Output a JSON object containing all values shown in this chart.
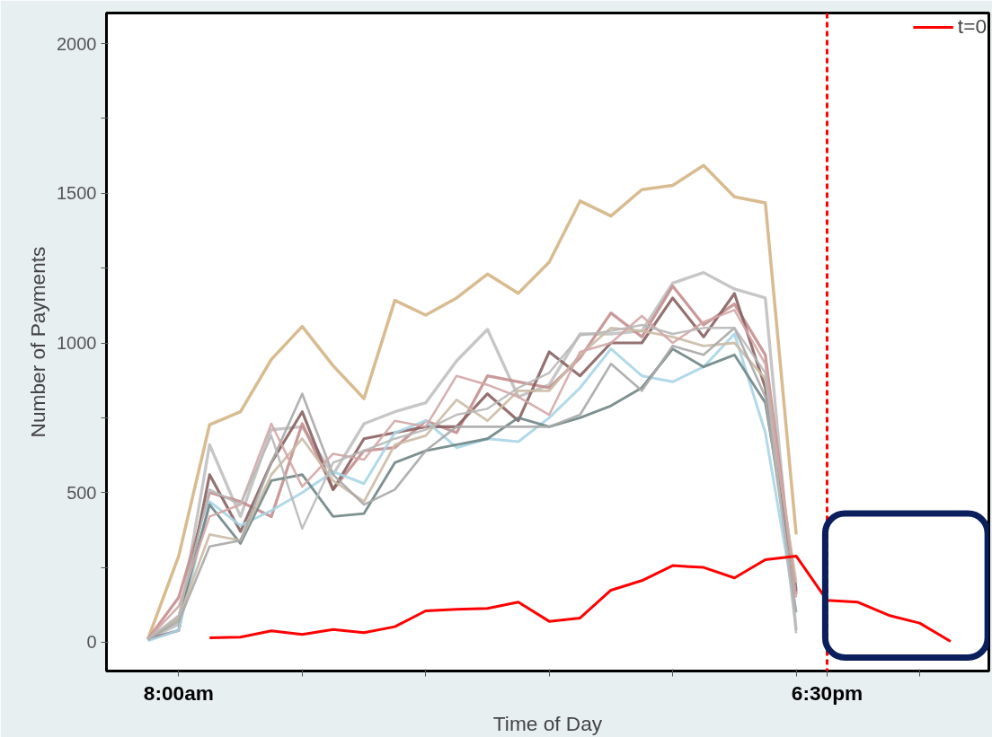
{
  "chart_data": {
    "type": "line",
    "xlabel": "Time of Day",
    "ylabel": "Number of Payments",
    "xlim": [
      6.83,
      21.12
    ],
    "ylim": [
      -96,
      2102
    ],
    "xticks": [
      {
        "value": 8,
        "label": "8:00am"
      },
      {
        "value": 10,
        "label": null
      },
      {
        "value": 12,
        "label": null
      },
      {
        "value": 14,
        "label": null
      },
      {
        "value": 16,
        "label": null
      },
      {
        "value": 18,
        "label": null
      },
      {
        "value": 18.5,
        "label": "6:30pm"
      },
      {
        "value": 20,
        "label": null
      }
    ],
    "yticks": [
      0,
      {
        "value": 250,
        "label": null
      },
      500,
      {
        "value": 750,
        "label": null
      },
      1000,
      {
        "value": 1250,
        "label": null
      },
      1500,
      {
        "value": 1750,
        "label": null
      },
      2000
    ],
    "x": [
      7.5,
      8,
      8.5,
      9,
      9.5,
      10,
      10.5,
      11,
      11.5,
      12,
      12.5,
      13,
      13.5,
      14,
      14.5,
      15,
      15.5,
      16,
      16.5,
      17,
      17.5,
      18
    ],
    "grid": false,
    "legend": "top right",
    "ref_lines": [
      {
        "axis": "x",
        "value": 18.5,
        "color": "#ff0000",
        "line_style": "dashed"
      }
    ],
    "series": [
      {
        "color": "#d4b483",
        "values": [
          10,
          288,
          727,
          770,
          945,
          1055,
          924,
          814,
          1142,
          1093,
          1150,
          1230,
          1166,
          1270,
          1474,
          1424,
          1512,
          1526,
          1593,
          1488,
          1468,
          360
        ]
      },
      {
        "color": "#c0c0c0",
        "values": [
          10,
          60,
          660,
          420,
          710,
          720,
          560,
          730,
          770,
          800,
          940,
          1045,
          820,
          860,
          1030,
          1030,
          1040,
          1200,
          1235,
          1180,
          1150,
          40
        ]
      },
      {
        "color": "#c48f8f",
        "values": [
          10,
          150,
          500,
          470,
          420,
          730,
          510,
          640,
          650,
          740,
          700,
          890,
          870,
          850,
          950,
          1100,
          1020,
          1190,
          1060,
          1130,
          960,
          160
        ]
      },
      {
        "color": "#8a6262",
        "values": [
          10,
          40,
          560,
          370,
          600,
          770,
          510,
          680,
          700,
          720,
          720,
          830,
          740,
          970,
          890,
          1000,
          1000,
          1150,
          1020,
          1165,
          850,
          170
        ]
      },
      {
        "color": "#a8d5e5",
        "values": [
          5,
          40,
          470,
          390,
          440,
          500,
          570,
          530,
          700,
          740,
          650,
          680,
          670,
          750,
          850,
          980,
          890,
          870,
          920,
          1030,
          700,
          100
        ]
      },
      {
        "color": "#6f8585",
        "values": [
          10,
          80,
          460,
          330,
          540,
          560,
          420,
          430,
          600,
          640,
          660,
          680,
          750,
          720,
          750,
          790,
          850,
          980,
          920,
          960,
          800,
          180
        ]
      },
      {
        "color": "#cbbba5",
        "values": [
          10,
          80,
          360,
          340,
          560,
          680,
          540,
          470,
          660,
          690,
          810,
          740,
          840,
          840,
          960,
          1050,
          1040,
          1020,
          990,
          1000,
          880,
          200
        ]
      },
      {
        "color": "#a9a9a9",
        "values": [
          10,
          70,
          320,
          340,
          600,
          830,
          560,
          460,
          510,
          640,
          720,
          720,
          720,
          720,
          760,
          930,
          840,
          990,
          960,
          1050,
          820,
          100
        ]
      },
      {
        "color": "#d3a6a6",
        "values": [
          10,
          120,
          420,
          460,
          730,
          520,
          630,
          610,
          740,
          720,
          890,
          860,
          820,
          760,
          970,
          1000,
          1090,
          1000,
          1070,
          1110,
          930,
          150
        ]
      },
      {
        "color": "#b8b8b8",
        "values": [
          10,
          90,
          510,
          460,
          690,
          380,
          600,
          640,
          680,
          710,
          760,
          780,
          850,
          900,
          1025,
          1040,
          1060,
          1030,
          1050,
          1050,
          900,
          30
        ]
      },
      {
        "name": "t=0",
        "color": "#ff0000",
        "x": [
          8.5,
          9,
          9.5,
          10,
          10.5,
          11,
          11.5,
          12,
          12.5,
          13,
          13.5,
          14,
          14.5,
          15,
          15.5,
          16,
          16.5,
          17,
          17.5,
          18,
          18.5,
          19,
          19.5,
          20,
          20.5
        ],
        "values": [
          15,
          17,
          38,
          26,
          43,
          32,
          52,
          105,
          110,
          113,
          134,
          70,
          81,
          174,
          206,
          256,
          250,
          215,
          276,
          288,
          140,
          134,
          90,
          64,
          3
        ]
      }
    ]
  }
}
